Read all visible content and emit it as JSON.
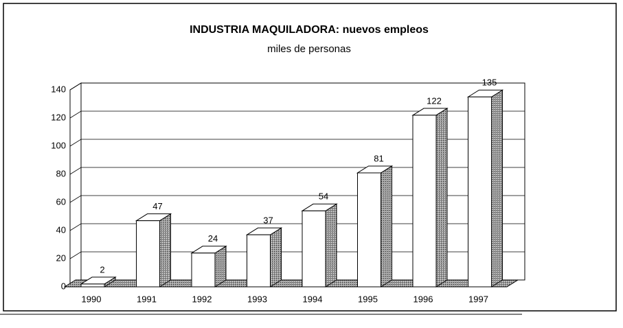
{
  "chart_data": {
    "type": "bar3d",
    "title": "INDUSTRIA MAQUILADORA: nuevos empleos",
    "subtitle": "miles de personas",
    "categories": [
      "1990",
      "1991",
      "1992",
      "1993",
      "1994",
      "1995",
      "1996",
      "1997"
    ],
    "values": [
      2,
      47,
      24,
      37,
      54,
      81,
      122,
      135
    ],
    "color": "#ffffff",
    "ylim": [
      0,
      140
    ],
    "yticks": [
      0,
      20,
      40,
      60,
      80,
      100,
      120,
      140
    ],
    "grid": true
  }
}
